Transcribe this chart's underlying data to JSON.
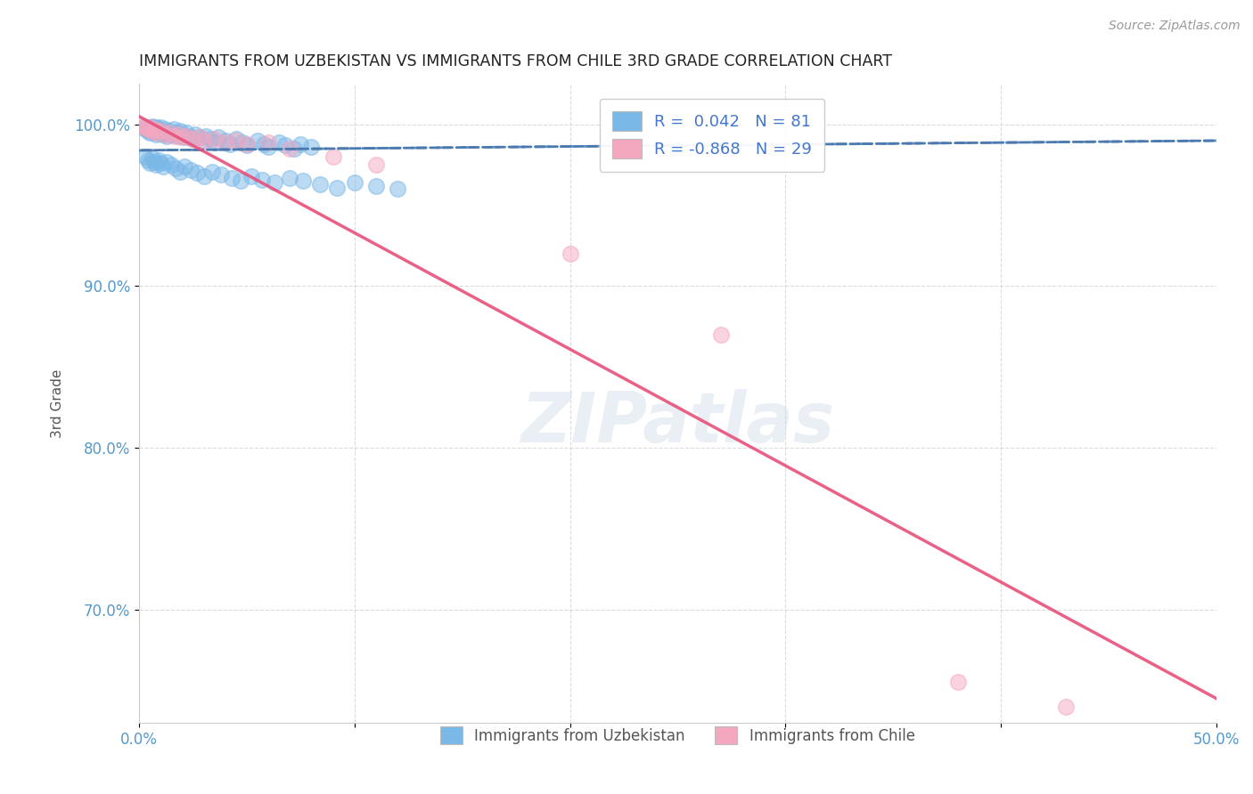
{
  "title": "IMMIGRANTS FROM UZBEKISTAN VS IMMIGRANTS FROM CHILE 3RD GRADE CORRELATION CHART",
  "source": "Source: ZipAtlas.com",
  "ylabel": "3rd Grade",
  "xlim": [
    0.0,
    0.5
  ],
  "ylim": [
    0.63,
    1.025
  ],
  "xticks": [
    0.0,
    0.1,
    0.2,
    0.3,
    0.4,
    0.5
  ],
  "xticklabels": [
    "0.0%",
    "",
    "",
    "",
    "",
    "50.0%"
  ],
  "yticks": [
    0.7,
    0.8,
    0.9,
    1.0
  ],
  "yticklabels": [
    "70.0%",
    "80.0%",
    "90.0%",
    "100.0%"
  ],
  "uzbekistan_color": "#7ab8e8",
  "chile_color": "#f4a8c0",
  "uzbekistan_trend_color": "#4a7ab0",
  "chile_trend_color": "#e8507a",
  "watermark": "ZIPatlas",
  "background_color": "#ffffff",
  "grid_color": "#cccccc",
  "title_color": "#222222",
  "axis_label_color": "#555555",
  "tick_label_color": "#5599cc",
  "legend_r_color": "#4477cc",
  "uzb_x": [
    0.002,
    0.003,
    0.004,
    0.005,
    0.005,
    0.006,
    0.006,
    0.007,
    0.007,
    0.008,
    0.008,
    0.009,
    0.009,
    0.01,
    0.01,
    0.011,
    0.012,
    0.012,
    0.013,
    0.014,
    0.015,
    0.016,
    0.017,
    0.018,
    0.019,
    0.02,
    0.021,
    0.022,
    0.023,
    0.025,
    0.026,
    0.028,
    0.03,
    0.031,
    0.033,
    0.035,
    0.037,
    0.04,
    0.042,
    0.045,
    0.048,
    0.05,
    0.055,
    0.058,
    0.06,
    0.065,
    0.068,
    0.072,
    0.075,
    0.08,
    0.003,
    0.004,
    0.005,
    0.006,
    0.007,
    0.008,
    0.009,
    0.01,
    0.011,
    0.013,
    0.015,
    0.017,
    0.019,
    0.021,
    0.024,
    0.027,
    0.03,
    0.034,
    0.038,
    0.043,
    0.047,
    0.052,
    0.057,
    0.063,
    0.07,
    0.076,
    0.084,
    0.092,
    0.1,
    0.11,
    0.12
  ],
  "uzb_y": [
    0.998,
    0.997,
    0.996,
    0.998,
    0.995,
    0.996,
    0.999,
    0.997,
    0.996,
    0.998,
    0.994,
    0.997,
    0.995,
    0.998,
    0.996,
    0.994,
    0.997,
    0.995,
    0.993,
    0.996,
    0.994,
    0.997,
    0.995,
    0.993,
    0.996,
    0.994,
    0.992,
    0.995,
    0.993,
    0.991,
    0.994,
    0.992,
    0.99,
    0.993,
    0.991,
    0.989,
    0.992,
    0.99,
    0.988,
    0.991,
    0.989,
    0.987,
    0.99,
    0.988,
    0.986,
    0.989,
    0.987,
    0.985,
    0.988,
    0.986,
    0.98,
    0.978,
    0.976,
    0.979,
    0.977,
    0.975,
    0.978,
    0.976,
    0.974,
    0.977,
    0.975,
    0.973,
    0.971,
    0.974,
    0.972,
    0.97,
    0.968,
    0.971,
    0.969,
    0.967,
    0.965,
    0.968,
    0.966,
    0.964,
    0.967,
    0.965,
    0.963,
    0.961,
    0.964,
    0.962,
    0.96
  ],
  "chile_x": [
    0.002,
    0.003,
    0.004,
    0.005,
    0.006,
    0.007,
    0.008,
    0.01,
    0.012,
    0.014,
    0.016,
    0.018,
    0.02,
    0.022,
    0.025,
    0.028,
    0.03,
    0.035,
    0.04,
    0.045,
    0.05,
    0.06,
    0.07,
    0.09,
    0.11,
    0.2,
    0.27,
    0.38,
    0.43
  ],
  "chile_y": [
    0.999,
    0.998,
    0.997,
    0.998,
    0.996,
    0.997,
    0.995,
    0.996,
    0.994,
    0.995,
    0.993,
    0.994,
    0.992,
    0.993,
    0.991,
    0.992,
    0.99,
    0.991,
    0.989,
    0.99,
    0.988,
    0.989,
    0.985,
    0.98,
    0.975,
    0.92,
    0.87,
    0.655,
    0.64
  ],
  "chile_trend_x0": 0.0,
  "chile_trend_y0": 1.005,
  "chile_trend_x1": 0.5,
  "chile_trend_y1": 0.645,
  "uzb_trend_x0": 0.0,
  "uzb_trend_y0": 0.984,
  "uzb_trend_x1": 0.5,
  "uzb_trend_y1": 0.99
}
